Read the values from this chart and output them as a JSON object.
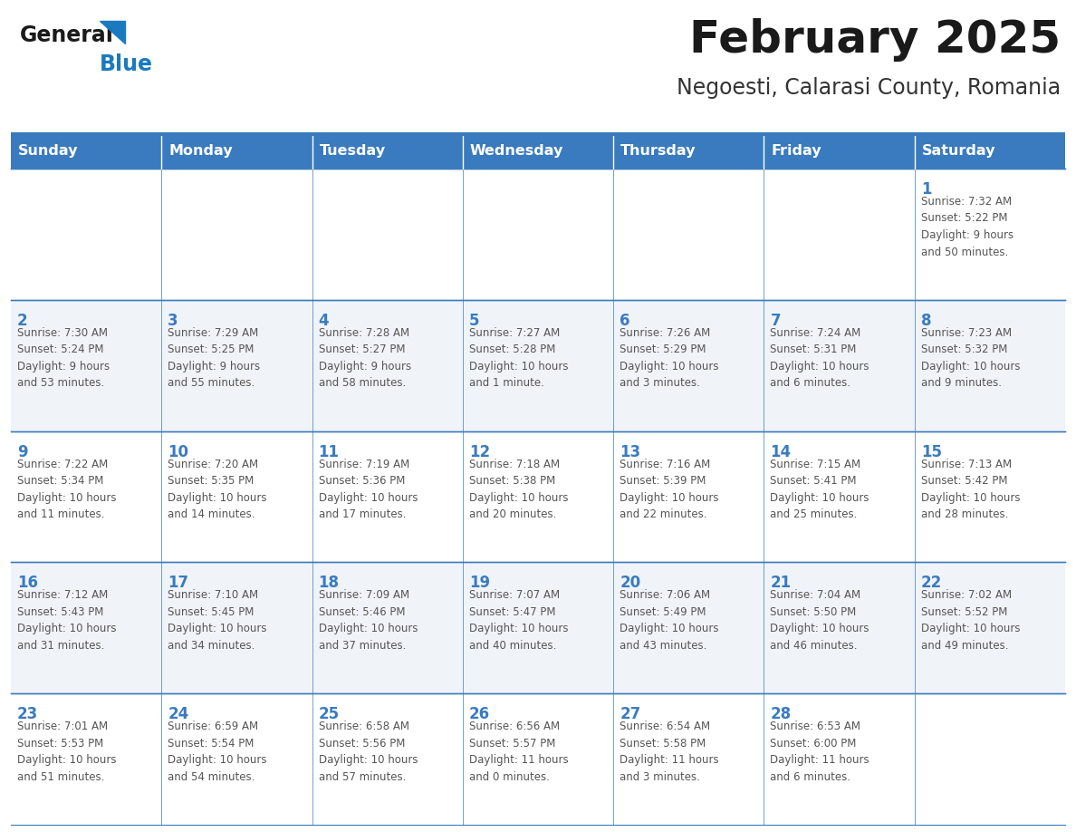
{
  "title": "February 2025",
  "subtitle": "Negoesti, Calarasi County, Romania",
  "days_of_week": [
    "Sunday",
    "Monday",
    "Tuesday",
    "Wednesday",
    "Thursday",
    "Friday",
    "Saturday"
  ],
  "header_bg": "#3a7bbf",
  "header_text": "#ffffff",
  "cell_bg_even": "#ffffff",
  "cell_bg_odd": "#f0f4f8",
  "border_color": "#3a7bbf",
  "day_num_color": "#3a7bbf",
  "info_text_color": "#555555",
  "title_color": "#1a1a1a",
  "subtitle_color": "#333333",
  "logo_general_color": "#1a1a1a",
  "logo_blue_color": "#1a7abf",
  "fig_width": 11.88,
  "fig_height": 9.18,
  "calendar_data": [
    [
      {
        "day": null,
        "info": ""
      },
      {
        "day": null,
        "info": ""
      },
      {
        "day": null,
        "info": ""
      },
      {
        "day": null,
        "info": ""
      },
      {
        "day": null,
        "info": ""
      },
      {
        "day": null,
        "info": ""
      },
      {
        "day": 1,
        "info": "Sunrise: 7:32 AM\nSunset: 5:22 PM\nDaylight: 9 hours\nand 50 minutes."
      }
    ],
    [
      {
        "day": 2,
        "info": "Sunrise: 7:30 AM\nSunset: 5:24 PM\nDaylight: 9 hours\nand 53 minutes."
      },
      {
        "day": 3,
        "info": "Sunrise: 7:29 AM\nSunset: 5:25 PM\nDaylight: 9 hours\nand 55 minutes."
      },
      {
        "day": 4,
        "info": "Sunrise: 7:28 AM\nSunset: 5:27 PM\nDaylight: 9 hours\nand 58 minutes."
      },
      {
        "day": 5,
        "info": "Sunrise: 7:27 AM\nSunset: 5:28 PM\nDaylight: 10 hours\nand 1 minute."
      },
      {
        "day": 6,
        "info": "Sunrise: 7:26 AM\nSunset: 5:29 PM\nDaylight: 10 hours\nand 3 minutes."
      },
      {
        "day": 7,
        "info": "Sunrise: 7:24 AM\nSunset: 5:31 PM\nDaylight: 10 hours\nand 6 minutes."
      },
      {
        "day": 8,
        "info": "Sunrise: 7:23 AM\nSunset: 5:32 PM\nDaylight: 10 hours\nand 9 minutes."
      }
    ],
    [
      {
        "day": 9,
        "info": "Sunrise: 7:22 AM\nSunset: 5:34 PM\nDaylight: 10 hours\nand 11 minutes."
      },
      {
        "day": 10,
        "info": "Sunrise: 7:20 AM\nSunset: 5:35 PM\nDaylight: 10 hours\nand 14 minutes."
      },
      {
        "day": 11,
        "info": "Sunrise: 7:19 AM\nSunset: 5:36 PM\nDaylight: 10 hours\nand 17 minutes."
      },
      {
        "day": 12,
        "info": "Sunrise: 7:18 AM\nSunset: 5:38 PM\nDaylight: 10 hours\nand 20 minutes."
      },
      {
        "day": 13,
        "info": "Sunrise: 7:16 AM\nSunset: 5:39 PM\nDaylight: 10 hours\nand 22 minutes."
      },
      {
        "day": 14,
        "info": "Sunrise: 7:15 AM\nSunset: 5:41 PM\nDaylight: 10 hours\nand 25 minutes."
      },
      {
        "day": 15,
        "info": "Sunrise: 7:13 AM\nSunset: 5:42 PM\nDaylight: 10 hours\nand 28 minutes."
      }
    ],
    [
      {
        "day": 16,
        "info": "Sunrise: 7:12 AM\nSunset: 5:43 PM\nDaylight: 10 hours\nand 31 minutes."
      },
      {
        "day": 17,
        "info": "Sunrise: 7:10 AM\nSunset: 5:45 PM\nDaylight: 10 hours\nand 34 minutes."
      },
      {
        "day": 18,
        "info": "Sunrise: 7:09 AM\nSunset: 5:46 PM\nDaylight: 10 hours\nand 37 minutes."
      },
      {
        "day": 19,
        "info": "Sunrise: 7:07 AM\nSunset: 5:47 PM\nDaylight: 10 hours\nand 40 minutes."
      },
      {
        "day": 20,
        "info": "Sunrise: 7:06 AM\nSunset: 5:49 PM\nDaylight: 10 hours\nand 43 minutes."
      },
      {
        "day": 21,
        "info": "Sunrise: 7:04 AM\nSunset: 5:50 PM\nDaylight: 10 hours\nand 46 minutes."
      },
      {
        "day": 22,
        "info": "Sunrise: 7:02 AM\nSunset: 5:52 PM\nDaylight: 10 hours\nand 49 minutes."
      }
    ],
    [
      {
        "day": 23,
        "info": "Sunrise: 7:01 AM\nSunset: 5:53 PM\nDaylight: 10 hours\nand 51 minutes."
      },
      {
        "day": 24,
        "info": "Sunrise: 6:59 AM\nSunset: 5:54 PM\nDaylight: 10 hours\nand 54 minutes."
      },
      {
        "day": 25,
        "info": "Sunrise: 6:58 AM\nSunset: 5:56 PM\nDaylight: 10 hours\nand 57 minutes."
      },
      {
        "day": 26,
        "info": "Sunrise: 6:56 AM\nSunset: 5:57 PM\nDaylight: 11 hours\nand 0 minutes."
      },
      {
        "day": 27,
        "info": "Sunrise: 6:54 AM\nSunset: 5:58 PM\nDaylight: 11 hours\nand 3 minutes."
      },
      {
        "day": 28,
        "info": "Sunrise: 6:53 AM\nSunset: 6:00 PM\nDaylight: 11 hours\nand 6 minutes."
      },
      {
        "day": null,
        "info": ""
      }
    ]
  ]
}
